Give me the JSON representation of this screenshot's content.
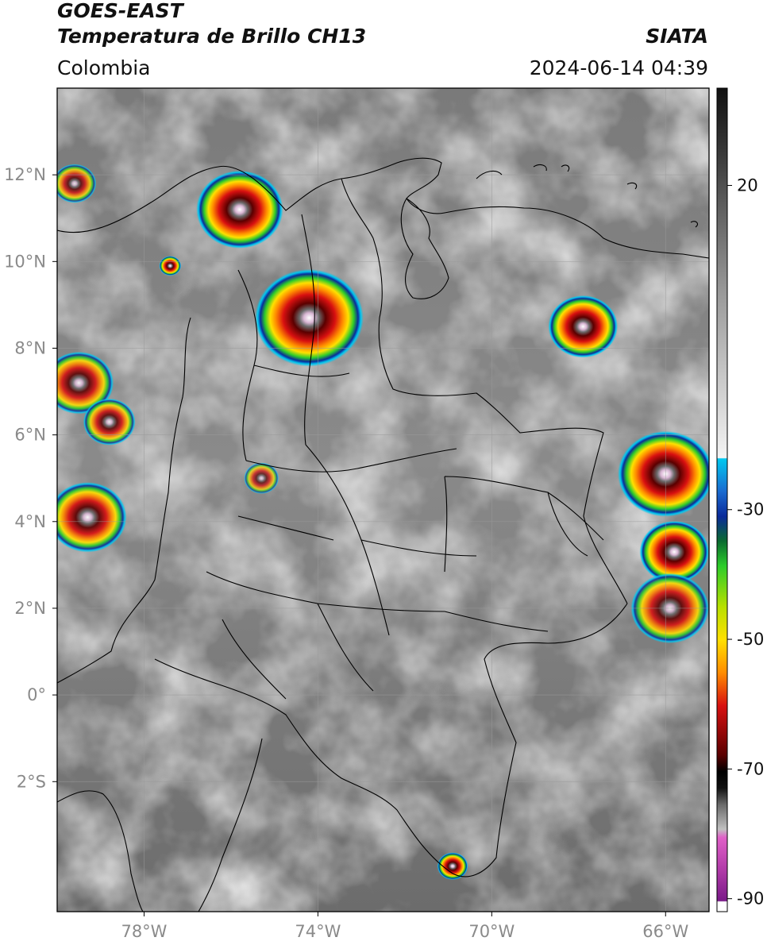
{
  "header": {
    "satellite": "GOES-EAST",
    "product": "Temperatura de Brillo CH13",
    "agency": "SIATA",
    "region": "Colombia",
    "timestamp": "2024-06-14 04:39"
  },
  "map": {
    "lon_range": [
      -80.0,
      -65.0
    ],
    "lat_range": [
      -5.0,
      14.0
    ],
    "lat_ticks": [
      {
        "value": 12,
        "label": "12°N"
      },
      {
        "value": 10,
        "label": "10°N"
      },
      {
        "value": 8,
        "label": "8°N"
      },
      {
        "value": 6,
        "label": "6°N"
      },
      {
        "value": 4,
        "label": "4°N"
      },
      {
        "value": 2,
        "label": "2°N"
      },
      {
        "value": 0,
        "label": "0°"
      },
      {
        "value": -2,
        "label": "2°S"
      }
    ],
    "lon_ticks": [
      {
        "value": -78,
        "label": "78°W"
      },
      {
        "value": -74,
        "label": "74°W"
      },
      {
        "value": -70,
        "label": "70°W"
      },
      {
        "value": -66,
        "label": "66°W"
      }
    ],
    "grid": true
  },
  "colorbar": {
    "range": [
      -92,
      35
    ],
    "ticks": [
      {
        "value": 20,
        "label": "20"
      },
      {
        "value": -30,
        "label": "-30"
      },
      {
        "value": -50,
        "label": "-50"
      },
      {
        "value": -70,
        "label": "-70"
      },
      {
        "value": -90,
        "label": "-90"
      }
    ],
    "colors": {
      "warm_light": "#f2f2f2",
      "warm_dark": "#3a3a3a",
      "cyan": "#00c8f0",
      "blue": "#0a2a9a",
      "green": "#2ccc2a",
      "yellow": "#ffe000",
      "orange": "#ff8c00",
      "red": "#d81010",
      "dark_red": "#5a0000",
      "black": "#000000",
      "pink": "#e050c8",
      "purple": "#7a1a88"
    }
  },
  "storms": [
    {
      "lon": -74.2,
      "lat": 8.7,
      "r": 1.25,
      "min_temp": -85
    },
    {
      "lon": -75.8,
      "lat": 11.2,
      "r": 1.0,
      "min_temp": -80
    },
    {
      "lon": -67.9,
      "lat": 8.5,
      "r": 0.8,
      "min_temp": -84
    },
    {
      "lon": -66.0,
      "lat": 5.1,
      "r": 1.1,
      "min_temp": -78
    },
    {
      "lon": -65.8,
      "lat": 3.3,
      "r": 0.8,
      "min_temp": -72
    },
    {
      "lon": -65.9,
      "lat": 2.0,
      "r": 0.9,
      "min_temp": -60
    },
    {
      "lon": -79.3,
      "lat": 4.1,
      "r": 0.9,
      "min_temp": -62
    },
    {
      "lon": -79.5,
      "lat": 7.2,
      "r": 0.8,
      "min_temp": -60
    },
    {
      "lon": -78.8,
      "lat": 6.3,
      "r": 0.6,
      "min_temp": -58
    },
    {
      "lon": -70.9,
      "lat": -3.95,
      "r": 0.35,
      "min_temp": -70
    },
    {
      "lon": -75.3,
      "lat": 5.0,
      "r": 0.4,
      "min_temp": -50
    },
    {
      "lon": -79.6,
      "lat": 11.8,
      "r": 0.5,
      "min_temp": -55
    },
    {
      "lon": -77.4,
      "lat": 9.9,
      "r": 0.25,
      "min_temp": -72
    }
  ]
}
